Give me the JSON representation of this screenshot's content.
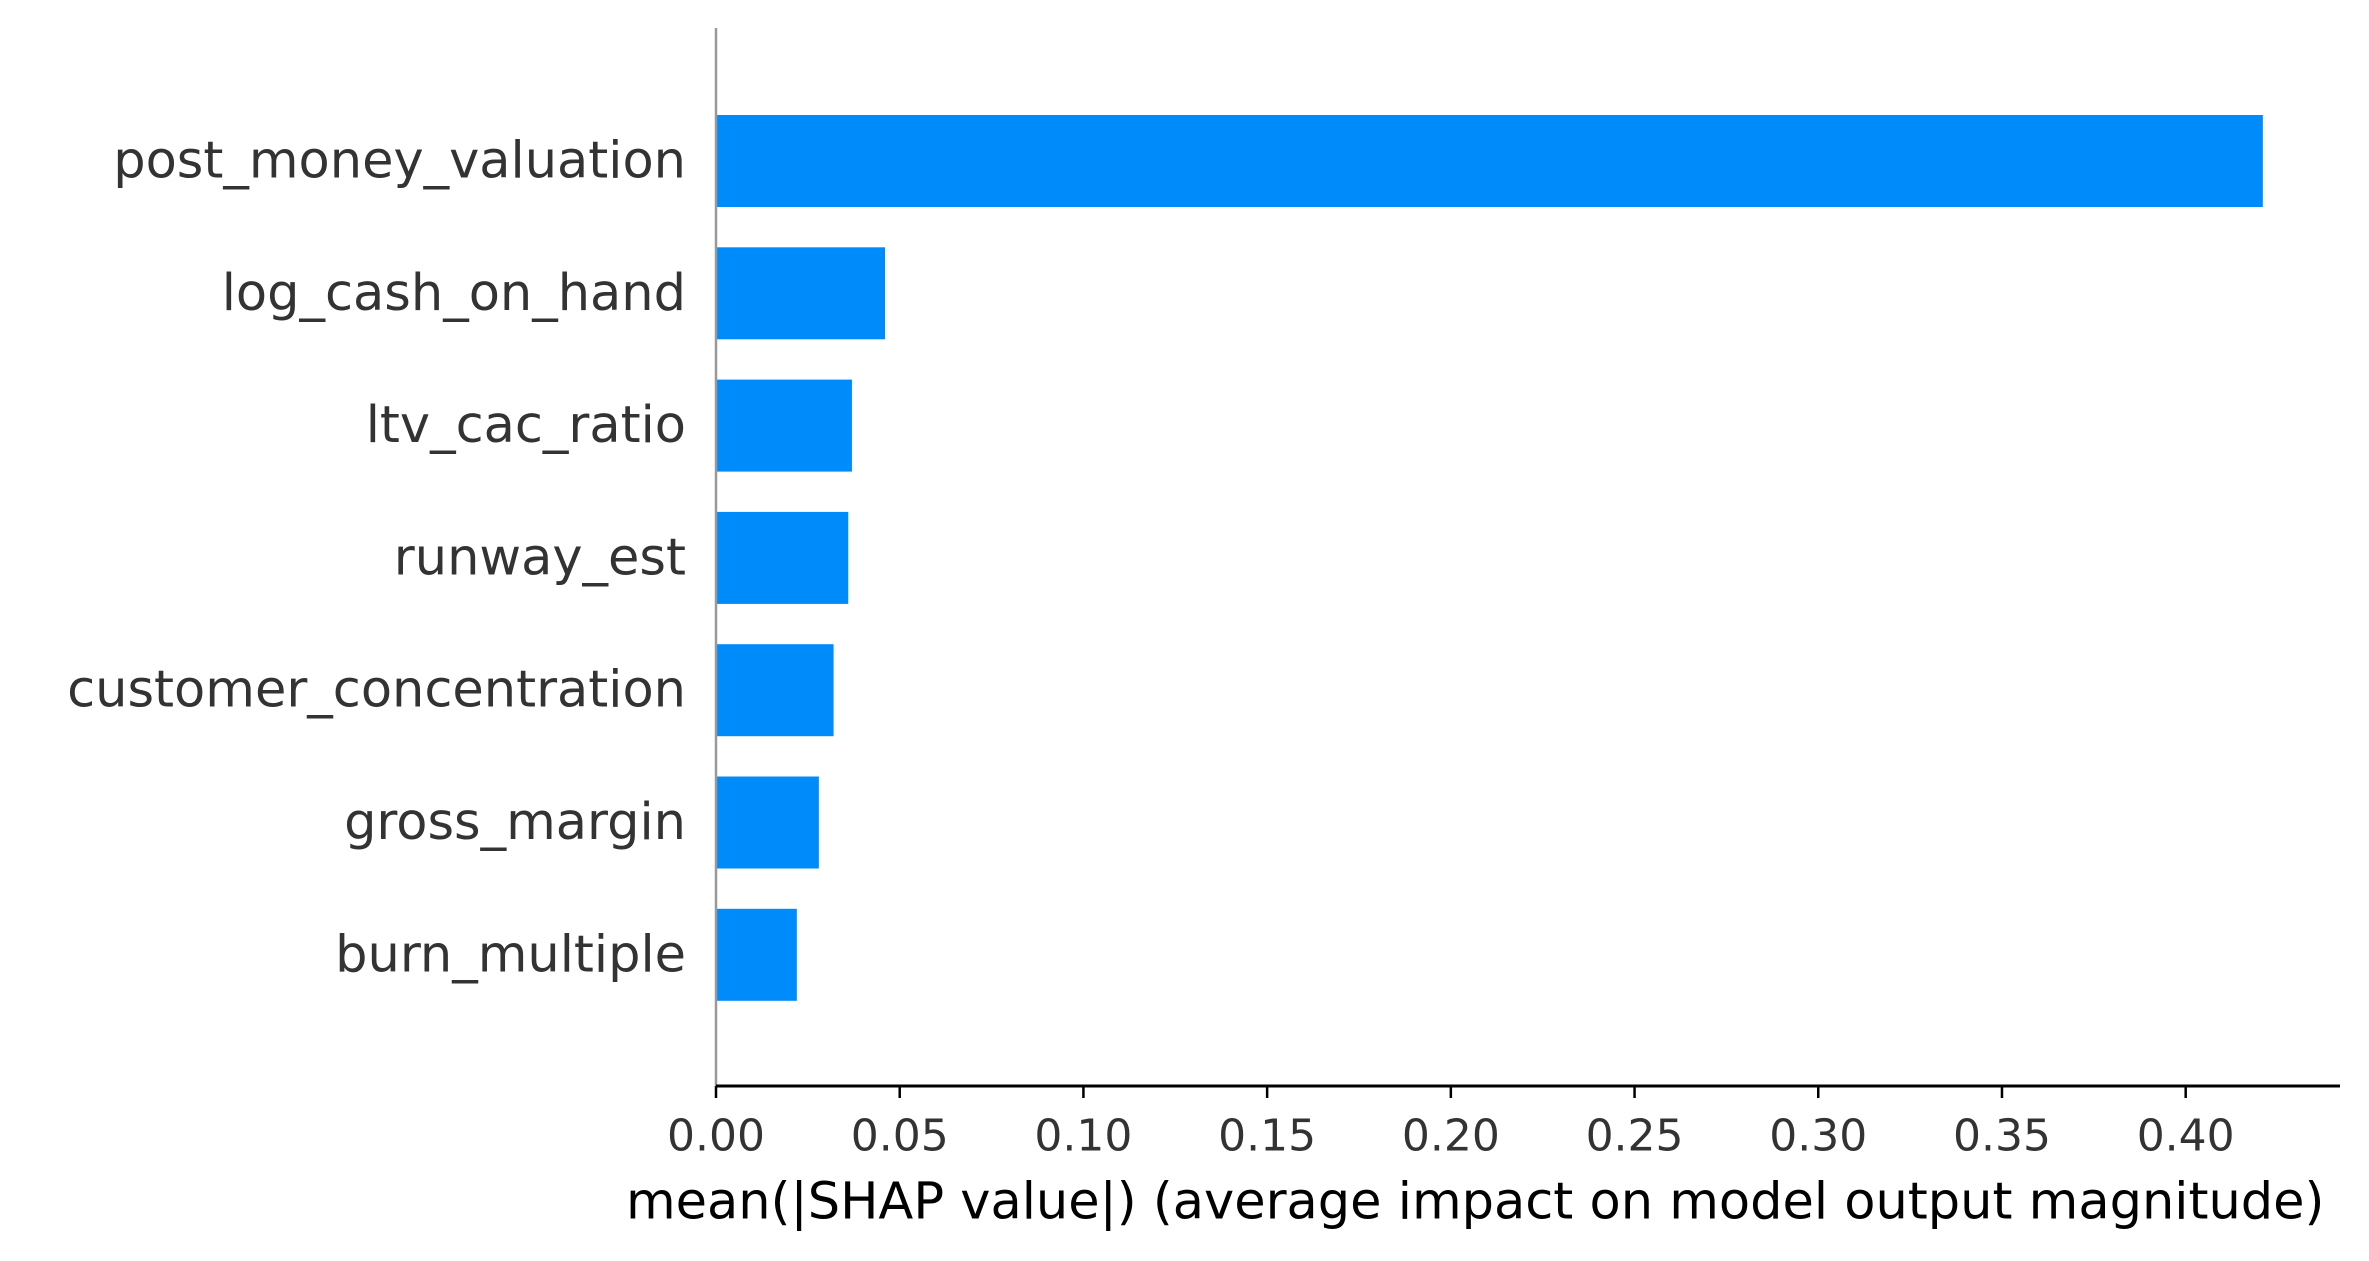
{
  "chart_data": {
    "type": "bar",
    "orientation": "horizontal",
    "categories": [
      "post_money_valuation",
      "log_cash_on_hand",
      "ltv_cac_ratio",
      "runway_est",
      "customer_concentration",
      "gross_margin",
      "burn_multiple"
    ],
    "values": [
      0.421,
      0.046,
      0.037,
      0.036,
      0.032,
      0.028,
      0.022
    ],
    "xlabel": "mean(|SHAP value|) (average impact on model output magnitude)",
    "ylabel": "",
    "title": "",
    "xlim": [
      0,
      0.442
    ],
    "xticks": [
      "0.00",
      "0.05",
      "0.10",
      "0.15",
      "0.20",
      "0.25",
      "0.30",
      "0.35",
      "0.40"
    ],
    "grid": false,
    "legend": "none",
    "colors": {
      "bar": "#008bfb",
      "label_text": "#333333",
      "axis_title": "#000000",
      "bottom_spine": "#000000",
      "zero_line": "#999999"
    }
  }
}
